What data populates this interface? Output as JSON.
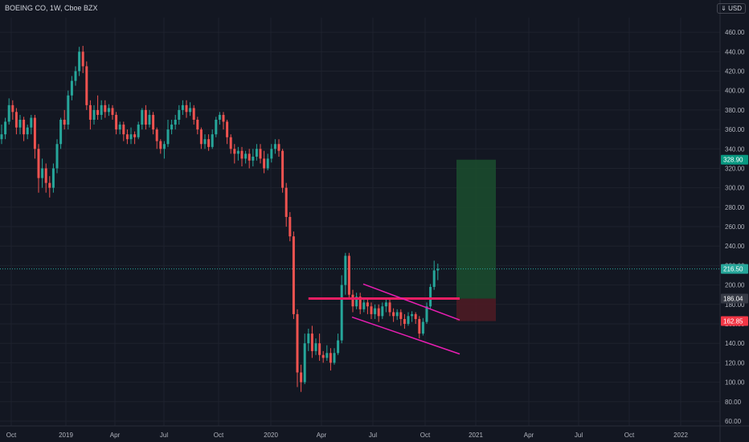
{
  "header": {
    "title": "BOEING CO, 1W, Cboe BZX",
    "unit": "USD",
    "unit_prefix": "⇓"
  },
  "colors": {
    "background": "#131722",
    "up": "#26a69a",
    "down": "#ef5350",
    "grid": "#1e222d",
    "channel": "#e91eb3",
    "level": "#e91e63",
    "target_zone": "#1b4d2e",
    "stop_zone": "#4d1b24"
  },
  "chart_data": {
    "type": "candlestick",
    "ylim": [
      55,
      475
    ],
    "y_ticks": [
      60,
      80,
      100,
      120,
      140,
      160,
      180,
      200,
      220,
      240,
      260,
      280,
      300,
      320,
      340,
      360,
      380,
      400,
      420,
      440,
      460
    ],
    "x_labels": [
      "Oct",
      "2019",
      "Apr",
      "Jul",
      "Oct",
      "2020",
      "Apr",
      "Jul",
      "Oct",
      "2021",
      "Apr",
      "Jul",
      "Oct",
      "2022"
    ],
    "price_labels": [
      {
        "value": 328.9,
        "label": "328.90",
        "color": "#089981"
      },
      {
        "value": 216.5,
        "label": "216.50",
        "color": "#26a69a"
      },
      {
        "value": 186.04,
        "label": "186.04",
        "color": "#363a45"
      },
      {
        "value": 162.85,
        "label": "162.85",
        "color": "#f23645"
      }
    ],
    "current_price": 216.5,
    "horizontal_level": 186.04,
    "position": {
      "entry": 186.04,
      "target": 328.9,
      "stop": 162.85
    },
    "channel": {
      "upper": [
        [
          43,
          201
        ],
        [
          51,
          164
        ]
      ],
      "lower": [
        [
          43,
          167
        ],
        [
          51,
          129
        ]
      ]
    },
    "candles": [
      [
        350,
        355,
        345,
        365
      ],
      [
        355,
        368,
        350,
        372
      ],
      [
        368,
        385,
        365,
        392
      ],
      [
        385,
        378,
        370,
        390
      ],
      [
        378,
        362,
        355,
        382
      ],
      [
        362,
        370,
        355,
        375
      ],
      [
        370,
        355,
        348,
        373
      ],
      [
        355,
        362,
        350,
        365
      ],
      [
        362,
        372,
        355,
        375
      ],
      [
        372,
        340,
        330,
        375
      ],
      [
        340,
        310,
        295,
        345
      ],
      [
        310,
        320,
        300,
        330
      ],
      [
        320,
        305,
        295,
        325
      ],
      [
        305,
        300,
        290,
        312
      ],
      [
        300,
        320,
        295,
        325
      ],
      [
        320,
        345,
        315,
        350
      ],
      [
        345,
        370,
        340,
        372
      ],
      [
        370,
        365,
        360,
        380
      ],
      [
        365,
        395,
        360,
        400
      ],
      [
        395,
        410,
        390,
        415
      ],
      [
        410,
        420,
        405,
        425
      ],
      [
        420,
        440,
        415,
        445
      ],
      [
        440,
        425,
        418,
        446
      ],
      [
        425,
        385,
        380,
        430
      ],
      [
        385,
        370,
        360,
        390
      ],
      [
        370,
        380,
        365,
        385
      ],
      [
        380,
        375,
        370,
        395
      ],
      [
        375,
        385,
        370,
        390
      ],
      [
        385,
        378,
        372,
        390
      ],
      [
        378,
        382,
        374,
        386
      ],
      [
        382,
        375,
        370,
        385
      ],
      [
        375,
        360,
        355,
        378
      ],
      [
        360,
        365,
        355,
        368
      ],
      [
        365,
        355,
        348,
        368
      ],
      [
        355,
        350,
        345,
        360
      ],
      [
        350,
        355,
        345,
        362
      ],
      [
        355,
        352,
        345,
        358
      ],
      [
        352,
        365,
        350,
        368
      ],
      [
        365,
        380,
        360,
        382
      ],
      [
        380,
        365,
        360,
        385
      ],
      [
        365,
        375,
        362,
        380
      ],
      [
        375,
        360,
        355,
        378
      ],
      [
        360,
        348,
        340,
        362
      ],
      [
        348,
        340,
        335,
        350
      ],
      [
        340,
        345,
        330,
        348
      ],
      [
        345,
        360,
        342,
        370
      ],
      [
        360,
        365,
        355,
        370
      ],
      [
        365,
        370,
        360,
        375
      ],
      [
        370,
        380,
        365,
        385
      ],
      [
        380,
        385,
        375,
        390
      ],
      [
        385,
        378,
        372,
        390
      ],
      [
        378,
        382,
        374,
        388
      ],
      [
        382,
        370,
        365,
        385
      ],
      [
        370,
        360,
        355,
        373
      ],
      [
        360,
        345,
        340,
        362
      ],
      [
        345,
        350,
        340,
        355
      ],
      [
        350,
        342,
        338,
        355
      ],
      [
        342,
        355,
        340,
        360
      ],
      [
        355,
        370,
        352,
        373
      ],
      [
        370,
        375,
        365,
        378
      ],
      [
        375,
        368,
        360,
        378
      ],
      [
        368,
        352,
        345,
        370
      ],
      [
        352,
        340,
        335,
        355
      ],
      [
        340,
        335,
        325,
        345
      ],
      [
        335,
        338,
        328,
        342
      ],
      [
        338,
        330,
        322,
        342
      ],
      [
        330,
        335,
        325,
        338
      ],
      [
        335,
        328,
        320,
        340
      ],
      [
        328,
        332,
        322,
        340
      ],
      [
        332,
        340,
        328,
        345
      ],
      [
        340,
        330,
        325,
        345
      ],
      [
        330,
        320,
        315,
        338
      ],
      [
        320,
        330,
        318,
        335
      ],
      [
        330,
        340,
        326,
        345
      ],
      [
        340,
        345,
        335,
        350
      ],
      [
        345,
        338,
        332,
        350
      ],
      [
        338,
        300,
        295,
        340
      ],
      [
        300,
        270,
        260,
        305
      ],
      [
        270,
        250,
        245,
        275
      ],
      [
        250,
        170,
        165,
        255
      ],
      [
        170,
        110,
        95,
        175
      ],
      [
        110,
        100,
        90,
        118
      ],
      [
        100,
        140,
        98,
        150
      ],
      [
        140,
        150,
        132,
        155
      ],
      [
        150,
        132,
        125,
        158
      ],
      [
        132,
        140,
        128,
        145
      ],
      [
        140,
        128,
        122,
        150
      ],
      [
        128,
        125,
        120,
        132
      ],
      [
        125,
        130,
        122,
        138
      ],
      [
        130,
        120,
        112,
        135
      ],
      [
        120,
        130,
        118,
        135
      ],
      [
        130,
        143,
        128,
        150
      ],
      [
        143,
        200,
        140,
        210
      ],
      [
        200,
        230,
        190,
        233
      ],
      [
        230,
        190,
        185,
        233
      ],
      [
        190,
        178,
        172,
        195
      ],
      [
        178,
        188,
        175,
        192
      ],
      [
        188,
        175,
        170,
        192
      ],
      [
        175,
        182,
        172,
        185
      ],
      [
        182,
        178,
        170,
        186
      ],
      [
        178,
        170,
        165,
        182
      ],
      [
        170,
        176,
        165,
        180
      ],
      [
        176,
        168,
        162,
        180
      ],
      [
        168,
        178,
        165,
        182
      ],
      [
        178,
        182,
        172,
        185
      ],
      [
        182,
        172,
        168,
        185
      ],
      [
        172,
        168,
        162,
        176
      ],
      [
        168,
        172,
        164,
        175
      ],
      [
        172,
        165,
        158,
        175
      ],
      [
        165,
        160,
        155,
        170
      ],
      [
        160,
        168,
        158,
        172
      ],
      [
        168,
        170,
        162,
        173
      ],
      [
        170,
        165,
        160,
        172
      ],
      [
        165,
        150,
        145,
        168
      ],
      [
        150,
        162,
        148,
        166
      ],
      [
        162,
        178,
        160,
        182
      ],
      [
        178,
        198,
        175,
        201
      ],
      [
        198,
        215,
        195,
        225
      ],
      [
        215,
        216.5,
        205,
        222
      ]
    ]
  }
}
